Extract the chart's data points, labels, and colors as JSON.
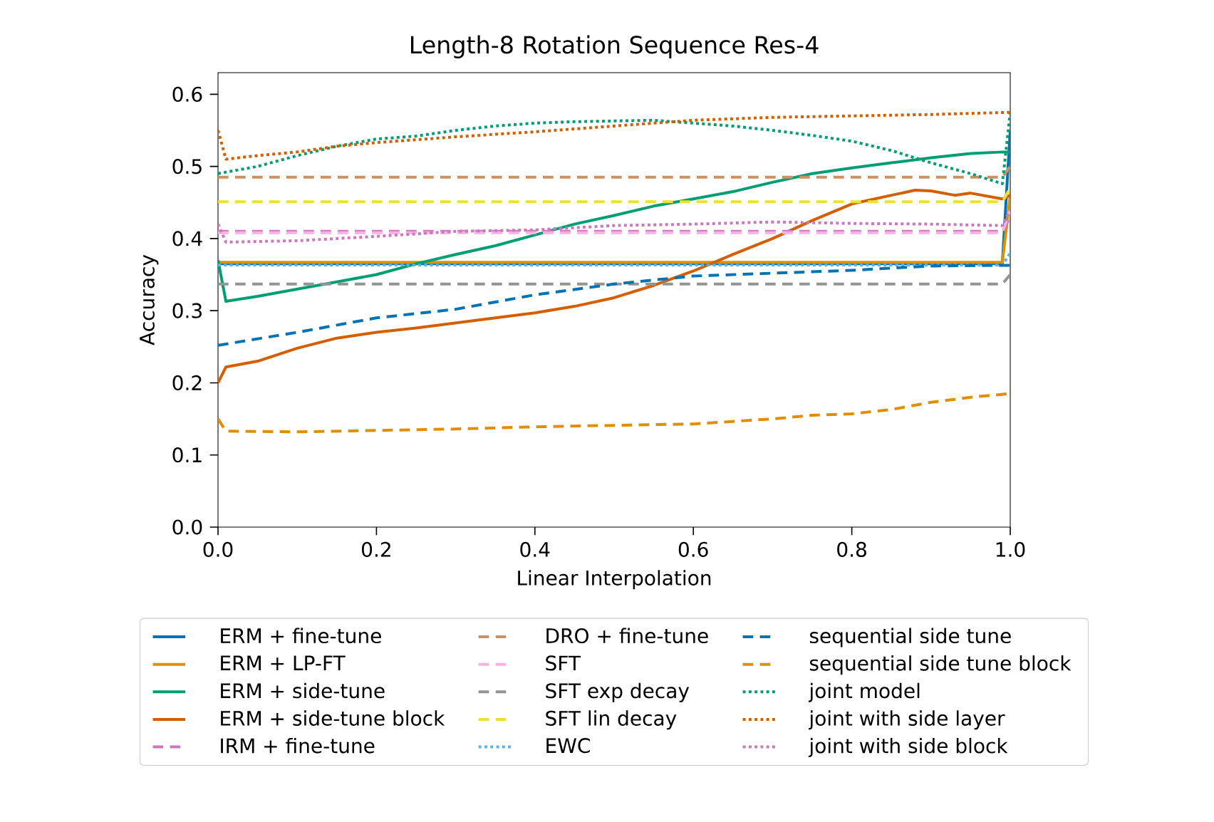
{
  "chart_data": {
    "type": "line",
    "title": "Length-8 Rotation Sequence Res-4",
    "xlabel": "Linear Interpolation",
    "ylabel": "Accuracy",
    "xlim": [
      0,
      1
    ],
    "ylim": [
      0,
      0.63
    ],
    "xticks": [
      {
        "value": 0,
        "label": "0.0"
      },
      {
        "value": 0.2,
        "label": "0.2"
      },
      {
        "value": 0.4,
        "label": "0.4"
      },
      {
        "value": 0.6,
        "label": "0.6"
      },
      {
        "value": 0.8,
        "label": "0.8"
      },
      {
        "value": 1,
        "label": "1.0"
      }
    ],
    "yticks": [
      {
        "value": 0,
        "label": "0.0"
      },
      {
        "value": 0.1,
        "label": "0.1"
      },
      {
        "value": 0.2,
        "label": "0.2"
      },
      {
        "value": 0.3,
        "label": "0.3"
      },
      {
        "value": 0.4,
        "label": "0.4"
      },
      {
        "value": 0.5,
        "label": "0.5"
      },
      {
        "value": 0.6,
        "label": "0.6"
      }
    ],
    "legend": "bottom",
    "grid": false,
    "series": [
      {
        "name": "ERM + fine-tune",
        "color": "#0173b2",
        "line_style": "solid",
        "x": [
          0,
          0.99,
          1
        ],
        "values": [
          0.365,
          0.365,
          0.55
        ]
      },
      {
        "name": "ERM + LP-FT",
        "color": "#de8f05",
        "line_style": "solid",
        "x": [
          0,
          0.99,
          1
        ],
        "values": [
          0.367,
          0.367,
          0.46
        ]
      },
      {
        "name": "ERM + side-tune",
        "color": "#029e73",
        "line_style": "solid",
        "x": [
          0,
          0.01,
          0.05,
          0.1,
          0.15,
          0.2,
          0.25,
          0.3,
          0.35,
          0.4,
          0.45,
          0.5,
          0.55,
          0.6,
          0.65,
          0.7,
          0.75,
          0.8,
          0.85,
          0.9,
          0.95,
          0.99,
          1
        ],
        "values": [
          0.37,
          0.313,
          0.32,
          0.33,
          0.34,
          0.35,
          0.365,
          0.378,
          0.39,
          0.405,
          0.42,
          0.432,
          0.445,
          0.455,
          0.465,
          0.478,
          0.49,
          0.498,
          0.505,
          0.512,
          0.518,
          0.52,
          0.52
        ]
      },
      {
        "name": "ERM + side-tune block",
        "color": "#d55e00",
        "line_style": "solid",
        "x": [
          0,
          0.01,
          0.05,
          0.1,
          0.15,
          0.2,
          0.25,
          0.3,
          0.35,
          0.4,
          0.45,
          0.5,
          0.55,
          0.6,
          0.65,
          0.7,
          0.75,
          0.8,
          0.85,
          0.88,
          0.9,
          0.93,
          0.95,
          0.99,
          1
        ],
        "values": [
          0.2,
          0.222,
          0.23,
          0.248,
          0.262,
          0.27,
          0.276,
          0.283,
          0.29,
          0.297,
          0.306,
          0.318,
          0.335,
          0.355,
          0.378,
          0.4,
          0.425,
          0.448,
          0.46,
          0.467,
          0.466,
          0.46,
          0.463,
          0.455,
          0.46
        ]
      },
      {
        "name": "IRM + fine-tune",
        "color": "#cc78bc",
        "line_style": "dashed",
        "x": [
          0,
          0.99,
          1
        ],
        "values": [
          0.41,
          0.41,
          0.43
        ]
      },
      {
        "name": "DRO + fine-tune",
        "color": "#ca9161",
        "line_style": "dashed",
        "x": [
          0,
          0.99,
          1
        ],
        "values": [
          0.485,
          0.485,
          0.5
        ]
      },
      {
        "name": "SFT",
        "color": "#fbafe4",
        "line_style": "dashed",
        "x": [
          0,
          0.99,
          1
        ],
        "values": [
          0.408,
          0.408,
          0.44
        ]
      },
      {
        "name": "SFT exp decay",
        "color": "#949494",
        "line_style": "dashed",
        "x": [
          0,
          0.99,
          1
        ],
        "values": [
          0.337,
          0.337,
          0.35
        ]
      },
      {
        "name": "SFT lin decay",
        "color": "#ece133",
        "line_style": "dashed",
        "x": [
          0,
          0.99,
          1
        ],
        "values": [
          0.451,
          0.451,
          0.47
        ]
      },
      {
        "name": "EWC",
        "color": "#56b4e9",
        "line_style": "dotted",
        "x": [
          0,
          0.99,
          1
        ],
        "values": [
          0.363,
          0.363,
          0.38
        ]
      },
      {
        "name": "sequential side tune",
        "color": "#0173b2",
        "line_style": "dashed",
        "x": [
          0,
          0.1,
          0.2,
          0.3,
          0.4,
          0.5,
          0.6,
          0.7,
          0.8,
          0.9,
          1
        ],
        "values": [
          0.252,
          0.27,
          0.29,
          0.302,
          0.322,
          0.337,
          0.348,
          0.352,
          0.356,
          0.362,
          0.363
        ]
      },
      {
        "name": "sequential side tune block",
        "color": "#de8f05",
        "line_style": "dashed",
        "x": [
          0,
          0.01,
          0.1,
          0.2,
          0.3,
          0.4,
          0.5,
          0.6,
          0.7,
          0.75,
          0.8,
          0.85,
          0.9,
          0.95,
          1
        ],
        "values": [
          0.15,
          0.133,
          0.132,
          0.134,
          0.136,
          0.139,
          0.141,
          0.143,
          0.15,
          0.155,
          0.157,
          0.163,
          0.173,
          0.18,
          0.185
        ]
      },
      {
        "name": "joint model",
        "color": "#029e73",
        "line_style": "dotted",
        "x": [
          0,
          0.05,
          0.1,
          0.15,
          0.2,
          0.25,
          0.3,
          0.35,
          0.4,
          0.45,
          0.5,
          0.55,
          0.6,
          0.65,
          0.7,
          0.75,
          0.8,
          0.85,
          0.9,
          0.95,
          0.99,
          1
        ],
        "values": [
          0.49,
          0.5,
          0.515,
          0.528,
          0.538,
          0.542,
          0.55,
          0.556,
          0.56,
          0.562,
          0.563,
          0.564,
          0.56,
          0.556,
          0.55,
          0.543,
          0.535,
          0.522,
          0.505,
          0.49,
          0.476,
          0.575
        ]
      },
      {
        "name": "joint with side layer",
        "color": "#d55e00",
        "line_style": "dotted",
        "x": [
          0,
          0.01,
          0.05,
          0.1,
          0.15,
          0.2,
          0.3,
          0.4,
          0.5,
          0.6,
          0.7,
          0.8,
          0.9,
          1
        ],
        "values": [
          0.55,
          0.51,
          0.515,
          0.52,
          0.528,
          0.533,
          0.541,
          0.548,
          0.556,
          0.564,
          0.568,
          0.57,
          0.572,
          0.575
        ]
      },
      {
        "name": "joint with side block",
        "color": "#cc78bc",
        "line_style": "dotted",
        "x": [
          0,
          0.01,
          0.1,
          0.2,
          0.3,
          0.4,
          0.5,
          0.6,
          0.7,
          0.8,
          0.9,
          0.99,
          1
        ],
        "values": [
          0.42,
          0.395,
          0.397,
          0.403,
          0.41,
          0.412,
          0.418,
          0.42,
          0.423,
          0.421,
          0.42,
          0.418,
          0.44
        ]
      }
    ]
  }
}
